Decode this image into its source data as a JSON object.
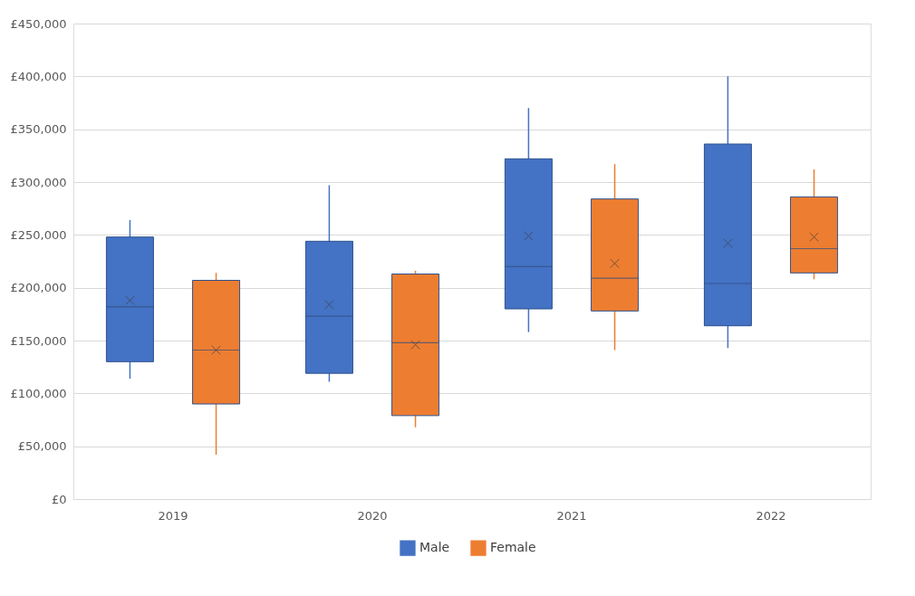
{
  "chart_data": {
    "type": "box",
    "categories": [
      "2019",
      "2020",
      "2021",
      "2022"
    ],
    "series": [
      {
        "name": "Male",
        "color": "#4472c4",
        "boxes": [
          {
            "low": 114000,
            "q1": 130000,
            "median": 182000,
            "q3": 248000,
            "high": 264000,
            "mean": 188000
          },
          {
            "low": 111000,
            "q1": 119000,
            "median": 173000,
            "q3": 244000,
            "high": 297000,
            "mean": 184000
          },
          {
            "low": 158000,
            "q1": 180000,
            "median": 220000,
            "q3": 322000,
            "high": 370000,
            "mean": 249000
          },
          {
            "low": 143000,
            "q1": 164000,
            "median": 204000,
            "q3": 336000,
            "high": 400000,
            "mean": 242000
          }
        ]
      },
      {
        "name": "Female",
        "color": "#ed7d31",
        "boxes": [
          {
            "low": 42000,
            "q1": 90000,
            "median": 141000,
            "q3": 207000,
            "high": 214000,
            "mean": 141000
          },
          {
            "low": 68000,
            "q1": 79000,
            "median": 148000,
            "q3": 213000,
            "high": 216000,
            "mean": 146000
          },
          {
            "low": 141000,
            "q1": 178000,
            "median": 209000,
            "q3": 284000,
            "high": 317000,
            "mean": 223000
          },
          {
            "low": 208000,
            "q1": 214000,
            "median": 237000,
            "q3": 286000,
            "high": 312000,
            "mean": 248000
          }
        ]
      }
    ],
    "ylim": [
      0,
      450000
    ],
    "yticks": [
      {
        "value": 0,
        "label": "£0"
      },
      {
        "value": 50000,
        "label": "£50,000"
      },
      {
        "value": 100000,
        "label": "£100,000"
      },
      {
        "value": 150000,
        "label": "£150,000"
      },
      {
        "value": 200000,
        "label": "£200,000"
      },
      {
        "value": 250000,
        "label": "£250,000"
      },
      {
        "value": 300000,
        "label": "£300,000"
      },
      {
        "value": 350000,
        "label": "£350,000"
      },
      {
        "value": 400000,
        "label": "£400,000"
      },
      {
        "value": 450000,
        "label": "£450,000"
      }
    ],
    "grid": "y",
    "legend": "bottom",
    "marker": "cross"
  }
}
